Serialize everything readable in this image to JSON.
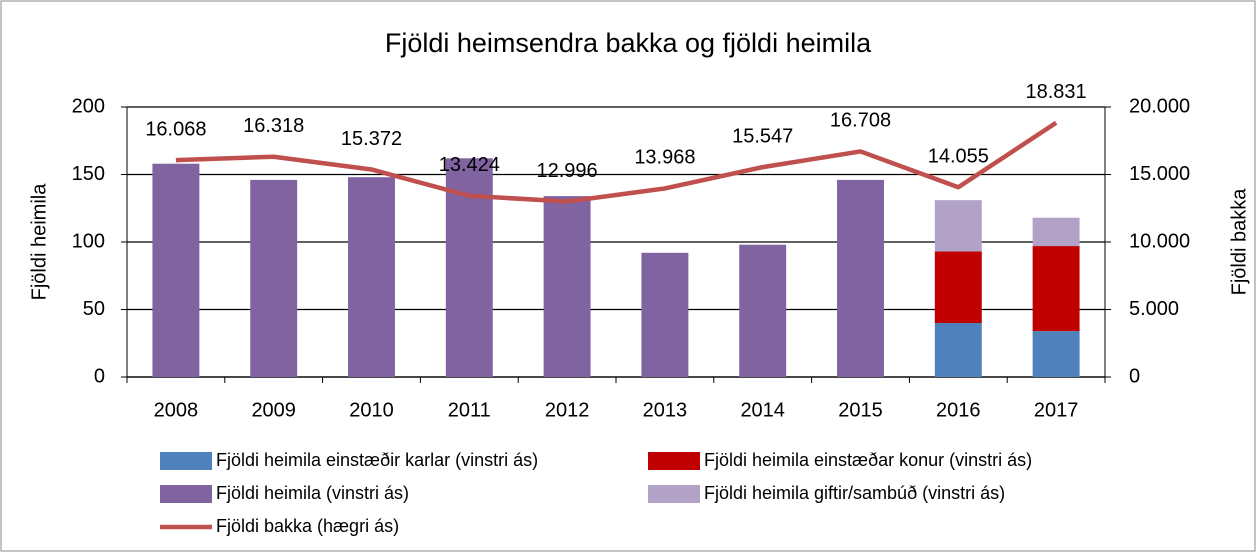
{
  "chart_data": {
    "type": "bar",
    "title": "Fjöldi heimsendra bakka og fjöldi heimila",
    "y_label": "Fjöldi heimila",
    "y2_label": "Fjöldi bakka",
    "categories": [
      "2008",
      "2009",
      "2010",
      "2011",
      "2012",
      "2013",
      "2014",
      "2015",
      "2016",
      "2017"
    ],
    "series": [
      {
        "name": "Fjöldi heimila einstæðir karlar (vinstri ás)",
        "color": "#4f81bd",
        "values": [
          null,
          null,
          null,
          null,
          null,
          null,
          null,
          null,
          40,
          34
        ]
      },
      {
        "name": "Fjöldi heimila einstæðar konur (vinstri ás)",
        "color": "#c00000",
        "values": [
          null,
          null,
          null,
          null,
          null,
          null,
          null,
          null,
          53,
          63
        ]
      },
      {
        "name": "Fjöldi heimila (vinstri ás)",
        "color": "#8064a2",
        "values": [
          158,
          146,
          148,
          162,
          134,
          92,
          98,
          146,
          null,
          null
        ]
      },
      {
        "name": "Fjöldi heimila giftir/sambúð (vinstri ás)",
        "color": "#b3a2c7",
        "values": [
          null,
          null,
          null,
          null,
          null,
          null,
          null,
          null,
          38,
          21
        ]
      },
      {
        "name": "Fjöldi bakka (hægri ás)",
        "color": "#c0504d",
        "type": "line",
        "axis": "y2",
        "values": [
          16068,
          16318,
          15372,
          13424,
          12996,
          13968,
          15547,
          16708,
          14055,
          18831
        ],
        "value_labels": [
          "16.068",
          "16.318",
          "15.372",
          "13.424",
          "12.996",
          "13.968",
          "15.547",
          "16.708",
          "14.055",
          "18.831"
        ]
      }
    ],
    "ylim": [
      0,
      200
    ],
    "yticks": [
      0,
      50,
      100,
      150,
      200
    ],
    "y2lim": [
      0,
      20000
    ],
    "y2ticks": [
      0,
      {
        "value": 5000,
        "label": "5.000"
      },
      {
        "value": 10000,
        "label": "10.000"
      },
      {
        "value": 15000,
        "label": "15.000"
      },
      {
        "value": 20000,
        "label": "20.000"
      }
    ],
    "grid": true,
    "stacked": true,
    "legend": "bottom"
  }
}
